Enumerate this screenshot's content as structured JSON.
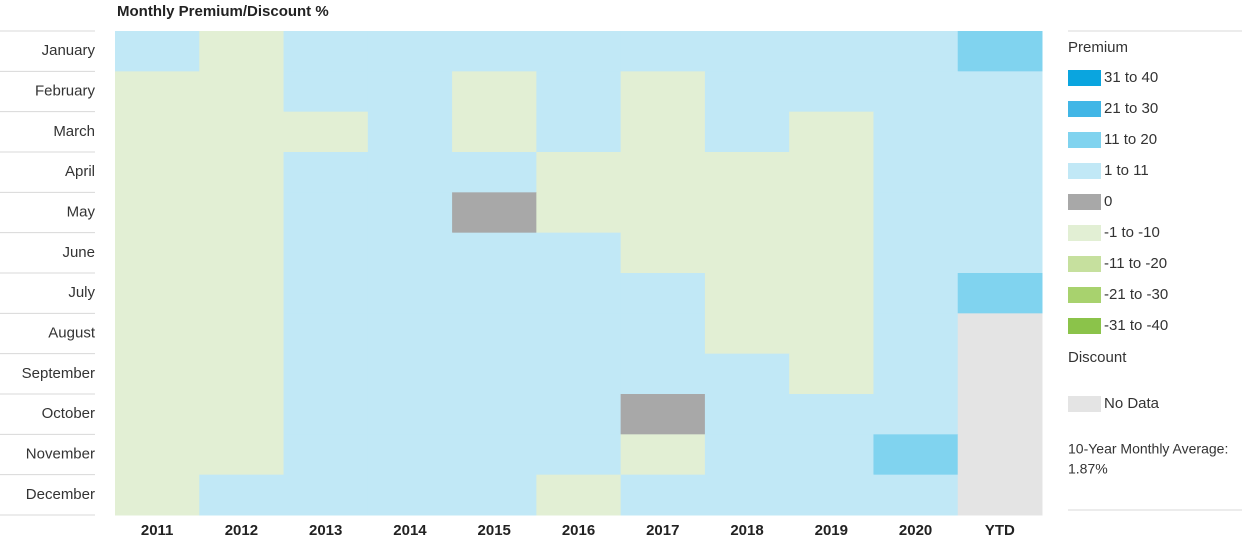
{
  "chart_data": {
    "type": "heatmap",
    "title": "Monthly Premium/Discount %",
    "rows": [
      "January",
      "February",
      "March",
      "April",
      "May",
      "June",
      "July",
      "August",
      "September",
      "October",
      "November",
      "December"
    ],
    "columns": [
      "2011",
      "2012",
      "2013",
      "2014",
      "2015",
      "2016",
      "2017",
      "2018",
      "2019",
      "2020",
      "YTD"
    ],
    "legend": {
      "premium_label": "Premium",
      "discount_label": "Discount",
      "items": [
        {
          "label": "31 to 40",
          "color": "#0aa5df"
        },
        {
          "label": "21 to 30",
          "color": "#41b6e6"
        },
        {
          "label": "11 to 20",
          "color": "#80d3ef"
        },
        {
          "label": "1 to 11",
          "color": "#c1e8f6"
        },
        {
          "label": "0",
          "color": "#a8a8a8"
        },
        {
          "label": "-1 to -10",
          "color": "#e2efd4"
        },
        {
          "label": "-11 to -20",
          "color": "#c6e09e"
        },
        {
          "label": "-21 to -30",
          "color": "#a8d26e"
        },
        {
          "label": "-31 to -40",
          "color": "#8bc34a"
        }
      ],
      "no_data": {
        "label": "No Data",
        "color": "#e4e4e4"
      },
      "note": "10-Year Monthly Average:",
      "note_value": "1.87%"
    },
    "cells": [
      [
        "1 to 11",
        "-1 to -10",
        "1 to 11",
        "1 to 11",
        "1 to 11",
        "1 to 11",
        "1 to 11",
        "1 to 11",
        "1 to 11",
        "1 to 11",
        "11 to 20"
      ],
      [
        "-1 to -10",
        "-1 to -10",
        "1 to 11",
        "1 to 11",
        "-1 to -10",
        "1 to 11",
        "-1 to -10",
        "1 to 11",
        "1 to 11",
        "1 to 11",
        "1 to 11"
      ],
      [
        "-1 to -10",
        "-1 to -10",
        "-1 to -10",
        "1 to 11",
        "-1 to -10",
        "1 to 11",
        "-1 to -10",
        "1 to 11",
        "-1 to -10",
        "1 to 11",
        "1 to 11"
      ],
      [
        "-1 to -10",
        "-1 to -10",
        "1 to 11",
        "1 to 11",
        "1 to 11",
        "-1 to -10",
        "-1 to -10",
        "-1 to -10",
        "-1 to -10",
        "1 to 11",
        "1 to 11"
      ],
      [
        "-1 to -10",
        "-1 to -10",
        "1 to 11",
        "1 to 11",
        "0",
        "-1 to -10",
        "-1 to -10",
        "-1 to -10",
        "-1 to -10",
        "1 to 11",
        "1 to 11"
      ],
      [
        "-1 to -10",
        "-1 to -10",
        "1 to 11",
        "1 to 11",
        "1 to 11",
        "1 to 11",
        "-1 to -10",
        "-1 to -10",
        "-1 to -10",
        "1 to 11",
        "1 to 11"
      ],
      [
        "-1 to -10",
        "-1 to -10",
        "1 to 11",
        "1 to 11",
        "1 to 11",
        "1 to 11",
        "1 to 11",
        "-1 to -10",
        "-1 to -10",
        "1 to 11",
        "11 to 20"
      ],
      [
        "-1 to -10",
        "-1 to -10",
        "1 to 11",
        "1 to 11",
        "1 to 11",
        "1 to 11",
        "1 to 11",
        "-1 to -10",
        "-1 to -10",
        "1 to 11",
        "No Data"
      ],
      [
        "-1 to -10",
        "-1 to -10",
        "1 to 11",
        "1 to 11",
        "1 to 11",
        "1 to 11",
        "1 to 11",
        "1 to 11",
        "-1 to -10",
        "1 to 11",
        "No Data"
      ],
      [
        "-1 to -10",
        "-1 to -10",
        "1 to 11",
        "1 to 11",
        "1 to 11",
        "1 to 11",
        "0",
        "1 to 11",
        "1 to 11",
        "1 to 11",
        "No Data"
      ],
      [
        "-1 to -10",
        "-1 to -10",
        "1 to 11",
        "1 to 11",
        "1 to 11",
        "1 to 11",
        "-1 to -10",
        "1 to 11",
        "1 to 11",
        "11 to 20",
        "No Data"
      ],
      [
        "-1 to -10",
        "1 to 11",
        "1 to 11",
        "1 to 11",
        "1 to 11",
        "-1 to -10",
        "1 to 11",
        "1 to 11",
        "1 to 11",
        "1 to 11",
        "No Data"
      ]
    ]
  }
}
